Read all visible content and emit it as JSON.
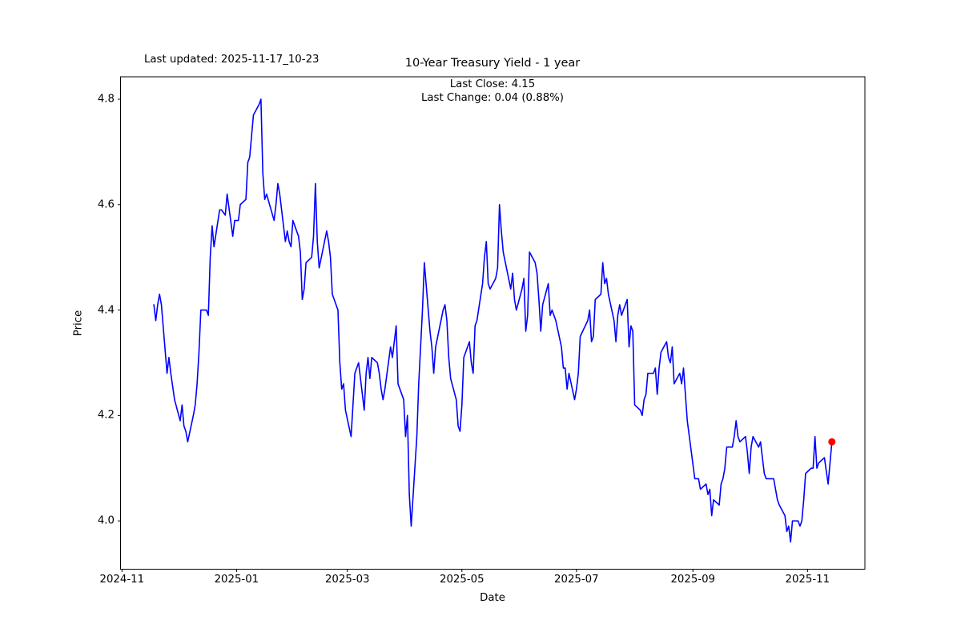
{
  "header": {
    "last_updated": "Last updated: 2025-11-17_10-23",
    "title": "10-Year Treasury Yield - 1 year"
  },
  "annotation": {
    "last_close_label": "Last Close: 4.15",
    "last_change_label": "Last Change: 0.04 (0.88%)"
  },
  "chart_data": {
    "type": "line",
    "title": "10-Year Treasury Yield - 1 year",
    "xlabel": "Date",
    "ylabel": "Price",
    "x_tick_labels": [
      "2024-11",
      "2025-01",
      "2025-03",
      "2025-05",
      "2025-07",
      "2025-09",
      "2025-11"
    ],
    "x_tick_dates": [
      "2024-11-01",
      "2025-01-01",
      "2025-03-01",
      "2025-05-01",
      "2025-07-01",
      "2025-09-01",
      "2025-11-01"
    ],
    "y_ticks": [
      4.8,
      4.6,
      4.4,
      4.2,
      4.0
    ],
    "ylim": [
      3.9075,
      4.8425
    ],
    "xlim": [
      "2024-10-31",
      "2025-12-02"
    ],
    "grid": false,
    "legend": "none",
    "line_color": "#0000ff",
    "last_point_marker_color": "#ff0000",
    "last_close": 4.15,
    "last_change": 0.04,
    "last_change_pct": 0.88,
    "series": [
      {
        "name": "10-Year Treasury Yield",
        "points": [
          [
            "2024-11-18",
            4.41
          ],
          [
            "2024-11-19",
            4.38
          ],
          [
            "2024-11-20",
            4.41
          ],
          [
            "2024-11-21",
            4.43
          ],
          [
            "2024-11-22",
            4.41
          ],
          [
            "2024-11-25",
            4.28
          ],
          [
            "2024-11-26",
            4.31
          ],
          [
            "2024-11-27",
            4.28
          ],
          [
            "2024-11-29",
            4.23
          ],
          [
            "2024-12-02",
            4.19
          ],
          [
            "2024-12-03",
            4.22
          ],
          [
            "2024-12-04",
            4.18
          ],
          [
            "2024-12-05",
            4.17
          ],
          [
            "2024-12-06",
            4.15
          ],
          [
            "2024-12-09",
            4.2
          ],
          [
            "2024-12-10",
            4.22
          ],
          [
            "2024-12-11",
            4.26
          ],
          [
            "2024-12-12",
            4.32
          ],
          [
            "2024-12-13",
            4.4
          ],
          [
            "2024-12-16",
            4.4
          ],
          [
            "2024-12-17",
            4.39
          ],
          [
            "2024-12-18",
            4.5
          ],
          [
            "2024-12-19",
            4.56
          ],
          [
            "2024-12-20",
            4.52
          ],
          [
            "2024-12-23",
            4.59
          ],
          [
            "2024-12-24",
            4.59
          ],
          [
            "2024-12-26",
            4.58
          ],
          [
            "2024-12-27",
            4.62
          ],
          [
            "2024-12-30",
            4.54
          ],
          [
            "2024-12-31",
            4.57
          ],
          [
            "2025-01-02",
            4.57
          ],
          [
            "2025-01-03",
            4.6
          ],
          [
            "2025-01-06",
            4.61
          ],
          [
            "2025-01-07",
            4.68
          ],
          [
            "2025-01-08",
            4.69
          ],
          [
            "2025-01-10",
            4.77
          ],
          [
            "2025-01-13",
            4.79
          ],
          [
            "2025-01-14",
            4.8
          ],
          [
            "2025-01-15",
            4.66
          ],
          [
            "2025-01-16",
            4.61
          ],
          [
            "2025-01-17",
            4.62
          ],
          [
            "2025-01-21",
            4.57
          ],
          [
            "2025-01-22",
            4.6
          ],
          [
            "2025-01-23",
            4.64
          ],
          [
            "2025-01-24",
            4.62
          ],
          [
            "2025-01-27",
            4.53
          ],
          [
            "2025-01-28",
            4.55
          ],
          [
            "2025-01-29",
            4.53
          ],
          [
            "2025-01-30",
            4.52
          ],
          [
            "2025-01-31",
            4.57
          ],
          [
            "2025-02-03",
            4.54
          ],
          [
            "2025-02-04",
            4.51
          ],
          [
            "2025-02-05",
            4.42
          ],
          [
            "2025-02-06",
            4.44
          ],
          [
            "2025-02-07",
            4.49
          ],
          [
            "2025-02-10",
            4.5
          ],
          [
            "2025-02-11",
            4.54
          ],
          [
            "2025-02-12",
            4.64
          ],
          [
            "2025-02-13",
            4.53
          ],
          [
            "2025-02-14",
            4.48
          ],
          [
            "2025-02-18",
            4.55
          ],
          [
            "2025-02-19",
            4.53
          ],
          [
            "2025-02-20",
            4.5
          ],
          [
            "2025-02-21",
            4.43
          ],
          [
            "2025-02-24",
            4.4
          ],
          [
            "2025-02-25",
            4.3
          ],
          [
            "2025-02-26",
            4.25
          ],
          [
            "2025-02-27",
            4.26
          ],
          [
            "2025-02-28",
            4.21
          ],
          [
            "2025-03-03",
            4.16
          ],
          [
            "2025-03-04",
            4.22
          ],
          [
            "2025-03-05",
            4.28
          ],
          [
            "2025-03-06",
            4.29
          ],
          [
            "2025-03-07",
            4.3
          ],
          [
            "2025-03-10",
            4.21
          ],
          [
            "2025-03-11",
            4.28
          ],
          [
            "2025-03-12",
            4.31
          ],
          [
            "2025-03-13",
            4.27
          ],
          [
            "2025-03-14",
            4.31
          ],
          [
            "2025-03-17",
            4.3
          ],
          [
            "2025-03-18",
            4.28
          ],
          [
            "2025-03-19",
            4.25
          ],
          [
            "2025-03-20",
            4.23
          ],
          [
            "2025-03-21",
            4.25
          ],
          [
            "2025-03-24",
            4.33
          ],
          [
            "2025-03-25",
            4.31
          ],
          [
            "2025-03-26",
            4.34
          ],
          [
            "2025-03-27",
            4.37
          ],
          [
            "2025-03-28",
            4.26
          ],
          [
            "2025-03-31",
            4.23
          ],
          [
            "2025-04-01",
            4.16
          ],
          [
            "2025-04-02",
            4.2
          ],
          [
            "2025-04-03",
            4.05
          ],
          [
            "2025-04-04",
            3.99
          ],
          [
            "2025-04-07",
            4.16
          ],
          [
            "2025-04-08",
            4.26
          ],
          [
            "2025-04-09",
            4.33
          ],
          [
            "2025-04-10",
            4.4
          ],
          [
            "2025-04-11",
            4.49
          ],
          [
            "2025-04-14",
            4.36
          ],
          [
            "2025-04-15",
            4.33
          ],
          [
            "2025-04-16",
            4.28
          ],
          [
            "2025-04-17",
            4.33
          ],
          [
            "2025-04-21",
            4.4
          ],
          [
            "2025-04-22",
            4.41
          ],
          [
            "2025-04-23",
            4.38
          ],
          [
            "2025-04-24",
            4.31
          ],
          [
            "2025-04-25",
            4.27
          ],
          [
            "2025-04-28",
            4.23
          ],
          [
            "2025-04-29",
            4.18
          ],
          [
            "2025-04-30",
            4.17
          ],
          [
            "2025-05-01",
            4.22
          ],
          [
            "2025-05-02",
            4.31
          ],
          [
            "2025-05-05",
            4.34
          ],
          [
            "2025-05-06",
            4.3
          ],
          [
            "2025-05-07",
            4.28
          ],
          [
            "2025-05-08",
            4.37
          ],
          [
            "2025-05-09",
            4.38
          ],
          [
            "2025-05-12",
            4.45
          ],
          [
            "2025-05-13",
            4.5
          ],
          [
            "2025-05-14",
            4.53
          ],
          [
            "2025-05-15",
            4.45
          ],
          [
            "2025-05-16",
            4.44
          ],
          [
            "2025-05-19",
            4.46
          ],
          [
            "2025-05-20",
            4.48
          ],
          [
            "2025-05-21",
            4.6
          ],
          [
            "2025-05-22",
            4.55
          ],
          [
            "2025-05-23",
            4.51
          ],
          [
            "2025-05-27",
            4.44
          ],
          [
            "2025-05-28",
            4.47
          ],
          [
            "2025-05-29",
            4.42
          ],
          [
            "2025-05-30",
            4.4
          ],
          [
            "2025-06-02",
            4.44
          ],
          [
            "2025-06-03",
            4.46
          ],
          [
            "2025-06-04",
            4.36
          ],
          [
            "2025-06-05",
            4.39
          ],
          [
            "2025-06-06",
            4.51
          ],
          [
            "2025-06-09",
            4.49
          ],
          [
            "2025-06-10",
            4.47
          ],
          [
            "2025-06-11",
            4.42
          ],
          [
            "2025-06-12",
            4.36
          ],
          [
            "2025-06-13",
            4.41
          ],
          [
            "2025-06-16",
            4.45
          ],
          [
            "2025-06-17",
            4.39
          ],
          [
            "2025-06-18",
            4.4
          ],
          [
            "2025-06-20",
            4.38
          ],
          [
            "2025-06-23",
            4.33
          ],
          [
            "2025-06-24",
            4.29
          ],
          [
            "2025-06-25",
            4.29
          ],
          [
            "2025-06-26",
            4.25
          ],
          [
            "2025-06-27",
            4.28
          ],
          [
            "2025-06-30",
            4.23
          ],
          [
            "2025-07-01",
            4.25
          ],
          [
            "2025-07-02",
            4.28
          ],
          [
            "2025-07-03",
            4.35
          ],
          [
            "2025-07-07",
            4.38
          ],
          [
            "2025-07-08",
            4.4
          ],
          [
            "2025-07-09",
            4.34
          ],
          [
            "2025-07-10",
            4.35
          ],
          [
            "2025-07-11",
            4.42
          ],
          [
            "2025-07-14",
            4.43
          ],
          [
            "2025-07-15",
            4.49
          ],
          [
            "2025-07-16",
            4.45
          ],
          [
            "2025-07-17",
            4.46
          ],
          [
            "2025-07-18",
            4.43
          ],
          [
            "2025-07-21",
            4.38
          ],
          [
            "2025-07-22",
            4.34
          ],
          [
            "2025-07-23",
            4.39
          ],
          [
            "2025-07-24",
            4.41
          ],
          [
            "2025-07-25",
            4.39
          ],
          [
            "2025-07-28",
            4.42
          ],
          [
            "2025-07-29",
            4.33
          ],
          [
            "2025-07-30",
            4.37
          ],
          [
            "2025-07-31",
            4.36
          ],
          [
            "2025-08-01",
            4.22
          ],
          [
            "2025-08-04",
            4.21
          ],
          [
            "2025-08-05",
            4.2
          ],
          [
            "2025-08-06",
            4.23
          ],
          [
            "2025-08-07",
            4.24
          ],
          [
            "2025-08-08",
            4.28
          ],
          [
            "2025-08-11",
            4.28
          ],
          [
            "2025-08-12",
            4.29
          ],
          [
            "2025-08-13",
            4.24
          ],
          [
            "2025-08-14",
            4.29
          ],
          [
            "2025-08-15",
            4.32
          ],
          [
            "2025-08-18",
            4.34
          ],
          [
            "2025-08-19",
            4.31
          ],
          [
            "2025-08-20",
            4.3
          ],
          [
            "2025-08-21",
            4.33
          ],
          [
            "2025-08-22",
            4.26
          ],
          [
            "2025-08-25",
            4.28
          ],
          [
            "2025-08-26",
            4.26
          ],
          [
            "2025-08-27",
            4.29
          ],
          [
            "2025-08-28",
            4.24
          ],
          [
            "2025-08-29",
            4.19
          ],
          [
            "2025-09-02",
            4.08
          ],
          [
            "2025-09-03",
            4.08
          ],
          [
            "2025-09-04",
            4.08
          ],
          [
            "2025-09-05",
            4.06
          ],
          [
            "2025-09-08",
            4.07
          ],
          [
            "2025-09-09",
            4.05
          ],
          [
            "2025-09-10",
            4.06
          ],
          [
            "2025-09-11",
            4.01
          ],
          [
            "2025-09-12",
            4.04
          ],
          [
            "2025-09-15",
            4.03
          ],
          [
            "2025-09-16",
            4.07
          ],
          [
            "2025-09-17",
            4.08
          ],
          [
            "2025-09-18",
            4.1
          ],
          [
            "2025-09-19",
            4.14
          ],
          [
            "2025-09-22",
            4.14
          ],
          [
            "2025-09-23",
            4.16
          ],
          [
            "2025-09-24",
            4.19
          ],
          [
            "2025-09-25",
            4.16
          ],
          [
            "2025-09-26",
            4.15
          ],
          [
            "2025-09-29",
            4.16
          ],
          [
            "2025-09-30",
            4.13
          ],
          [
            "2025-10-01",
            4.09
          ],
          [
            "2025-10-02",
            4.14
          ],
          [
            "2025-10-03",
            4.16
          ],
          [
            "2025-10-06",
            4.14
          ],
          [
            "2025-10-07",
            4.15
          ],
          [
            "2025-10-08",
            4.12
          ],
          [
            "2025-10-09",
            4.09
          ],
          [
            "2025-10-10",
            4.08
          ],
          [
            "2025-10-14",
            4.08
          ],
          [
            "2025-10-15",
            4.06
          ],
          [
            "2025-10-16",
            4.04
          ],
          [
            "2025-10-17",
            4.03
          ],
          [
            "2025-10-20",
            4.01
          ],
          [
            "2025-10-21",
            3.98
          ],
          [
            "2025-10-22",
            3.99
          ],
          [
            "2025-10-23",
            3.96
          ],
          [
            "2025-10-24",
            4.0
          ],
          [
            "2025-10-27",
            4.0
          ],
          [
            "2025-10-28",
            3.99
          ],
          [
            "2025-10-29",
            4.0
          ],
          [
            "2025-10-30",
            4.04
          ],
          [
            "2025-10-31",
            4.09
          ],
          [
            "2025-11-03",
            4.1
          ],
          [
            "2025-11-04",
            4.1
          ],
          [
            "2025-11-05",
            4.16
          ],
          [
            "2025-11-06",
            4.1
          ],
          [
            "2025-11-07",
            4.11
          ],
          [
            "2025-11-10",
            4.12
          ],
          [
            "2025-11-12",
            4.07
          ],
          [
            "2025-11-13",
            4.11
          ],
          [
            "2025-11-14",
            4.15
          ]
        ]
      }
    ]
  }
}
